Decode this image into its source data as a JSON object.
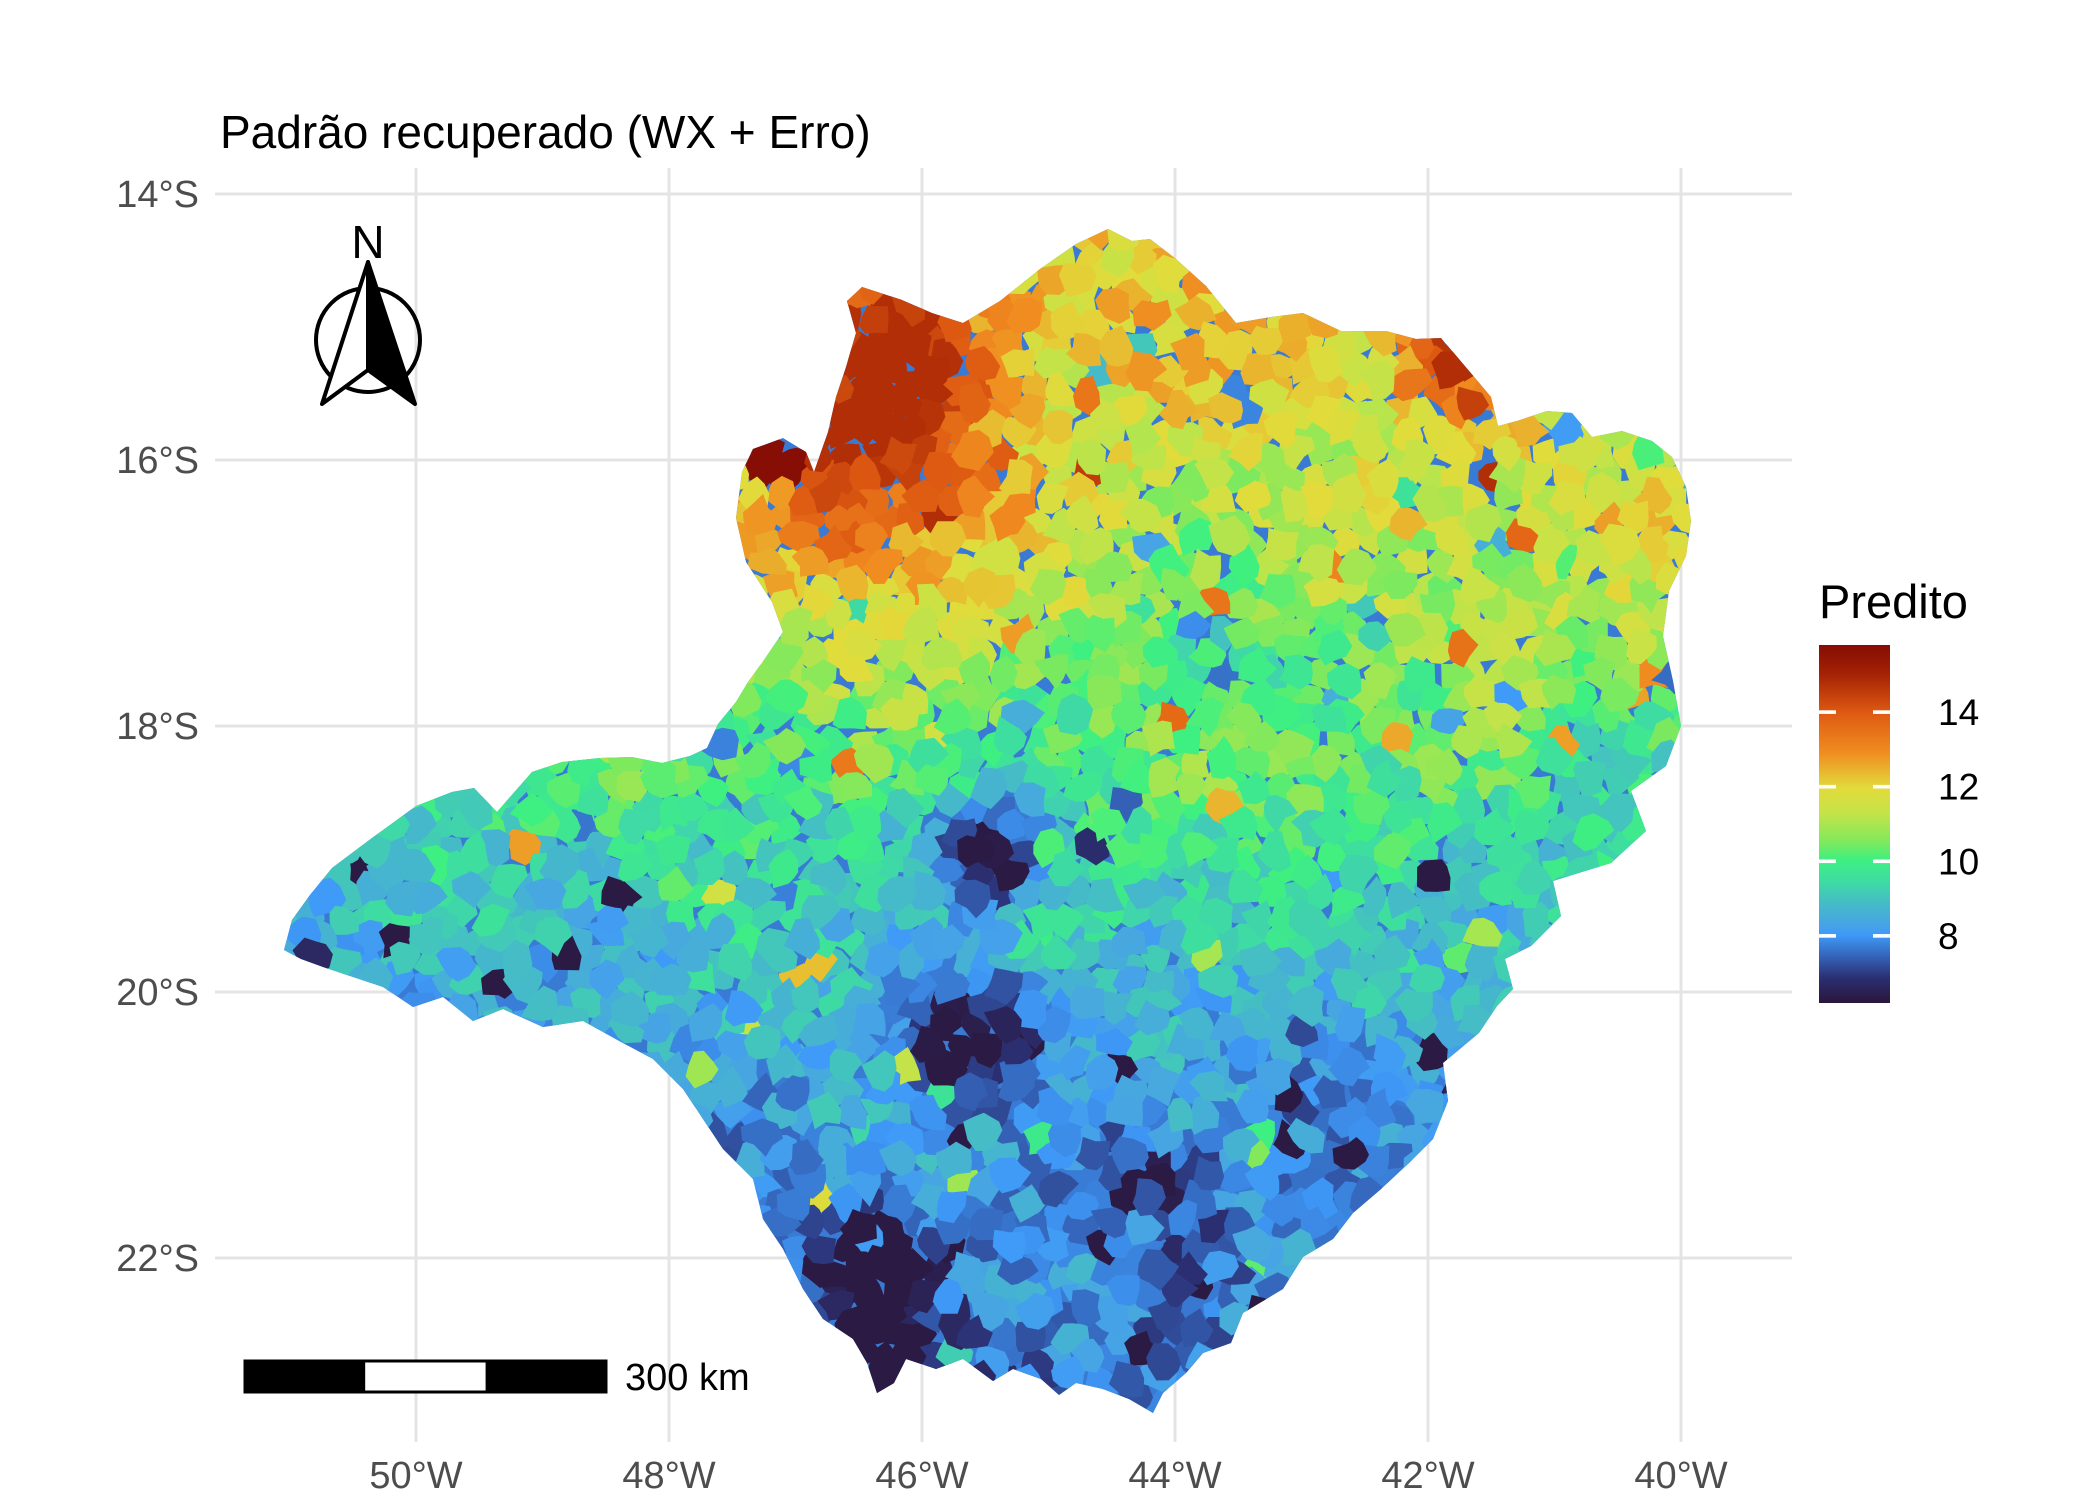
{
  "title": "Padrão recuperado (WX + Erro)",
  "axes": {
    "x_ticks": [
      {
        "label": "50°W",
        "lon": -50
      },
      {
        "label": "48°W",
        "lon": -48
      },
      {
        "label": "46°W",
        "lon": -46
      },
      {
        "label": "44°W",
        "lon": -44
      },
      {
        "label": "42°W",
        "lon": -42
      },
      {
        "label": "40°W",
        "lon": -40
      }
    ],
    "y_ticks": [
      {
        "label": "14°S",
        "lat": -14
      },
      {
        "label": "16°S",
        "lat": -16
      },
      {
        "label": "18°S",
        "lat": -18
      },
      {
        "label": "20°S",
        "lat": -20
      },
      {
        "label": "22°S",
        "lat": -22
      }
    ]
  },
  "legend": {
    "title": "Predito",
    "tick_labels": [
      "14",
      "12",
      "10",
      "8"
    ],
    "tick_values": [
      14,
      12,
      10,
      8
    ],
    "value_domain": [
      6.2,
      15.8
    ],
    "gradient": [
      {
        "u": 0.0,
        "color": "#840D04"
      },
      {
        "u": 0.08,
        "color": "#A42104"
      },
      {
        "u": 0.19,
        "color": "#DE5A12"
      },
      {
        "u": 0.3,
        "color": "#F08C20"
      },
      {
        "u": 0.4,
        "color": "#E2DB3B"
      },
      {
        "u": 0.47,
        "color": "#C4E348"
      },
      {
        "u": 0.55,
        "color": "#7FE95D"
      },
      {
        "u": 0.6,
        "color": "#3EF080"
      },
      {
        "u": 0.66,
        "color": "#3EDCA2"
      },
      {
        "u": 0.72,
        "color": "#45BCC6"
      },
      {
        "u": 0.78,
        "color": "#47A4E4"
      },
      {
        "u": 0.81,
        "color": "#3F9AF8"
      },
      {
        "u": 0.87,
        "color": "#3463B8"
      },
      {
        "u": 0.93,
        "color": "#2B2F72"
      },
      {
        "u": 1.0,
        "color": "#2B163B"
      }
    ]
  },
  "north_arrow_label": "N",
  "scalebar_label": "300 km",
  "colors": {
    "background": "#FFFFFF",
    "gridline": "#E4E4E4",
    "axis_text": "#4D4D4D",
    "text": "#000000"
  },
  "map": {
    "state": "Minas Gerais",
    "unit": "municípios",
    "value_name": "Predito",
    "value_domain": [
      6.2,
      15.8
    ],
    "gradient_north_south": {
      "north_value": 12,
      "south_value": 8
    },
    "pattern_hotspots": [
      {
        "type": "high",
        "lon": -46.4,
        "lat": -15.8,
        "peak": 14.5,
        "note": "mancha laranja/vermelha no noroeste"
      },
      {
        "type": "max",
        "lon": -47.2,
        "lat": -16.0,
        "peak": 15.8,
        "note": "município vermelho-escuro isolado"
      },
      {
        "type": "high",
        "lon": -41.8,
        "lat": -15.3,
        "peak": 13.8,
        "note": "mancha laranja no nordeste"
      },
      {
        "type": "low",
        "lon": -45.5,
        "lat": -19.0,
        "peak": 6.5,
        "note": "aglomerado azul-marinho central"
      },
      {
        "type": "low",
        "lon": -45.6,
        "lat": -20.3,
        "peak": 6.5,
        "note": "aglomerado azul-marinho centro-sul"
      },
      {
        "type": "low",
        "lon": -46.4,
        "lat": -22.1,
        "peak": 6.4,
        "note": "aglomerado escuro sudoeste"
      },
      {
        "type": "low",
        "lon": -46.3,
        "lat": -22.9,
        "peak": 6.3,
        "note": "ponta sul escura"
      }
    ]
  }
}
